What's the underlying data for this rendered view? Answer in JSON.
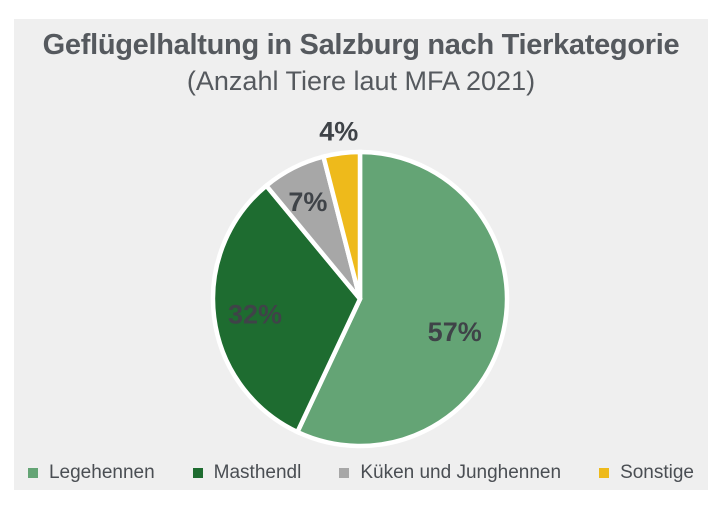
{
  "window": {
    "background": "#FFFFFF",
    "panel_background": "#EFEFEF"
  },
  "header": {
    "title": "Geflügelhaltung in Salzburg nach Tierkategorie",
    "subtitle": "(Anzahl Tiere laut MFA 2021)",
    "text_color": "#55595E"
  },
  "chart_data": {
    "type": "pie",
    "title": "Geflügelhaltung in Salzburg nach Tierkategorie",
    "subtitle": "(Anzahl Tiere laut MFA 2021)",
    "unit": "percent",
    "direction": "clockwise",
    "start_angle_deg": 0,
    "legend_position": "bottom",
    "label_color": "#3F4348",
    "slice_border_color": "#FFFFFF",
    "slices": [
      {
        "label": "Legehennen",
        "value": 57,
        "pct_label": "57%",
        "color": "#64A475",
        "label_placement": "inside",
        "label_r": 0.66,
        "label_dy": 12
      },
      {
        "label": "Masthendl",
        "value": 32,
        "pct_label": "32%",
        "color": "#1E6C30",
        "label_placement": "inside",
        "label_r": 0.72,
        "label_dy": 2
      },
      {
        "label": "Küken und Junghennen",
        "value": 7,
        "pct_label": "7%",
        "color": "#A7A7A7",
        "label_placement": "inside",
        "label_r": 0.78,
        "label_dy": 5
      },
      {
        "label": "Sonstige",
        "value": 4,
        "pct_label": "4%",
        "color": "#EEBA1B",
        "label_placement": "outside",
        "label_r": 1.15,
        "label_dy": 0
      }
    ]
  },
  "legend": {
    "text_color": "#4A4E53"
  }
}
